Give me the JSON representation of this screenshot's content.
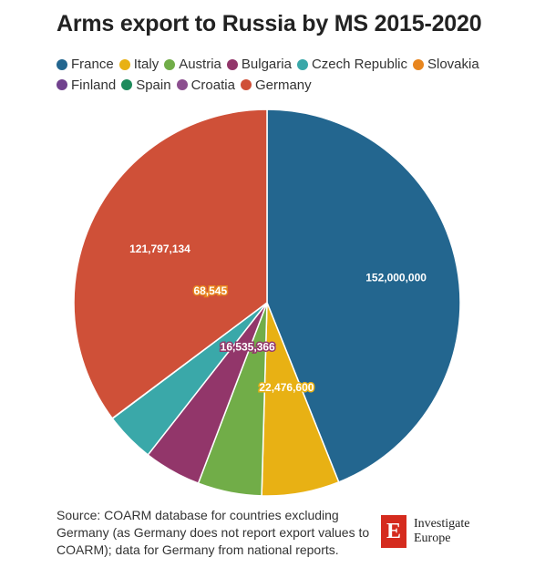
{
  "chart_data": {
    "type": "pie",
    "title": "Arms export to Russia by MS 2015-2020",
    "legend_position": "top",
    "categories": [
      "France",
      "Italy",
      "Austria",
      "Bulgaria",
      "Czech Republic",
      "Slovakia",
      "Finland",
      "Spain",
      "Croatia",
      "Germany"
    ],
    "values": [
      152000000,
      22476600,
      18500000,
      16535366,
      14500000,
      68545,
      0,
      0,
      0,
      121797134
    ],
    "data_labels": [
      "152,000,000",
      "22,476,600",
      "",
      "16,535,366",
      "",
      "68,545",
      "",
      "",
      "",
      "121,797,134"
    ],
    "colors": [
      "#23668f",
      "#e8b114",
      "#71ad48",
      "#92366a",
      "#3aa8a9",
      "#e8861f",
      "#71428e",
      "#1d8a5b",
      "#8c4f8f",
      "#cf5038"
    ],
    "label_colors": [
      "#ffffff",
      "#ffffff",
      "#ffffff",
      "#ffffff",
      "#ffffff",
      "#ffffff",
      "#ffffff",
      "#ffffff",
      "#ffffff",
      "#ffffff"
    ]
  },
  "source_text": "Source: COARM database for countries excluding Germany (as Germany does not report export values to COARM); data for Germany from national reports.",
  "logo": {
    "mark": "E",
    "line1": "Investigate",
    "line2": "Europe"
  }
}
